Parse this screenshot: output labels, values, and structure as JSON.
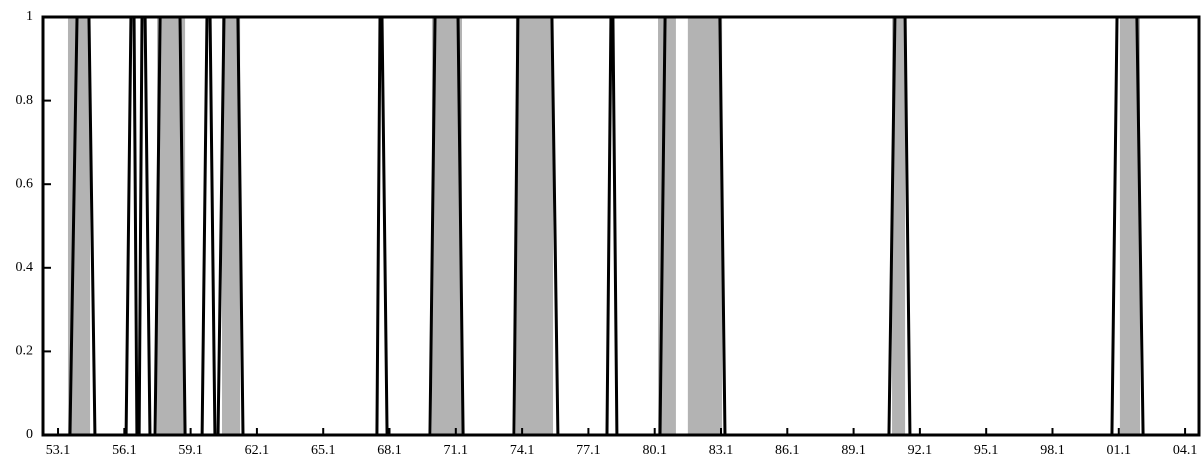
{
  "chart_data": {
    "type": "line",
    "xlim": [
      1952.32,
      2004.63
    ],
    "xticks": [
      {
        "value": 1953,
        "label": "53.1"
      },
      {
        "value": 1956,
        "label": "56.1"
      },
      {
        "value": 1959,
        "label": "59.1"
      },
      {
        "value": 1962,
        "label": "62.1"
      },
      {
        "value": 1965,
        "label": "65.1"
      },
      {
        "value": 1968,
        "label": "68.1"
      },
      {
        "value": 1971,
        "label": "71.1"
      },
      {
        "value": 1974,
        "label": "74.1"
      },
      {
        "value": 1977,
        "label": "77.1"
      },
      {
        "value": 1980,
        "label": "80.1"
      },
      {
        "value": 1983,
        "label": "83.1"
      },
      {
        "value": 1986,
        "label": "86.1"
      },
      {
        "value": 1989,
        "label": "89.1"
      },
      {
        "value": 1992,
        "label": "92.1"
      },
      {
        "value": 1995,
        "label": "95.1"
      },
      {
        "value": 1998,
        "label": "98.1"
      },
      {
        "value": 2001,
        "label": "01.1"
      },
      {
        "value": 2004,
        "label": "04.1"
      }
    ],
    "ylim": [
      0,
      1
    ],
    "yticks": [
      0,
      0.2,
      0.4,
      0.6,
      0.8,
      1
    ],
    "shaded": [
      [
        1953.45,
        1954.45
      ],
      [
        1957.48,
        1958.75
      ],
      [
        1960.42,
        1961.24
      ],
      [
        1969.92,
        1971.28
      ],
      [
        1973.72,
        1975.4
      ],
      [
        1980.15,
        1980.96
      ],
      [
        1981.5,
        1983.05
      ],
      [
        1990.74,
        1991.33
      ],
      [
        2001.05,
        2001.96
      ]
    ],
    "shade_color": "#b3b3b3",
    "series": [
      {
        "color": "#000000",
        "x": [
          1952.4,
          1953.54,
          1953.86,
          1954.4,
          1954.67,
          1956.08,
          1956.3,
          1956.44,
          1956.57,
          1956.67,
          1956.8,
          1956.94,
          1957.16,
          1957.39,
          1957.62,
          1958.52,
          1958.75,
          1959.52,
          1959.74,
          1959.88,
          1960.1,
          1960.24,
          1960.51,
          1961.14,
          1961.37,
          1967.43,
          1967.57,
          1967.66,
          1967.89,
          1969.83,
          1970.06,
          1971.1,
          1971.33,
          1973.63,
          1973.81,
          1975.35,
          1975.62,
          1977.84,
          1978.02,
          1978.11,
          1978.29,
          1980.24,
          1980.47,
          1982.95,
          1983.18,
          1990.6,
          1990.87,
          1991.33,
          1991.55,
          2000.69,
          2000.92,
          2001.82,
          2002.1,
          2004.55
        ],
        "values": [
          0,
          0,
          1,
          1,
          0,
          0,
          1,
          1,
          0,
          0,
          1,
          1,
          0,
          0,
          1,
          1,
          0,
          0,
          1,
          1,
          0,
          0,
          1,
          1,
          0,
          0,
          1,
          1,
          0,
          0,
          1,
          1,
          0,
          0,
          1,
          1,
          0,
          0,
          1,
          1,
          0,
          0,
          1,
          1,
          0,
          0,
          1,
          1,
          0,
          0,
          1,
          1,
          0,
          0
        ]
      }
    ]
  }
}
